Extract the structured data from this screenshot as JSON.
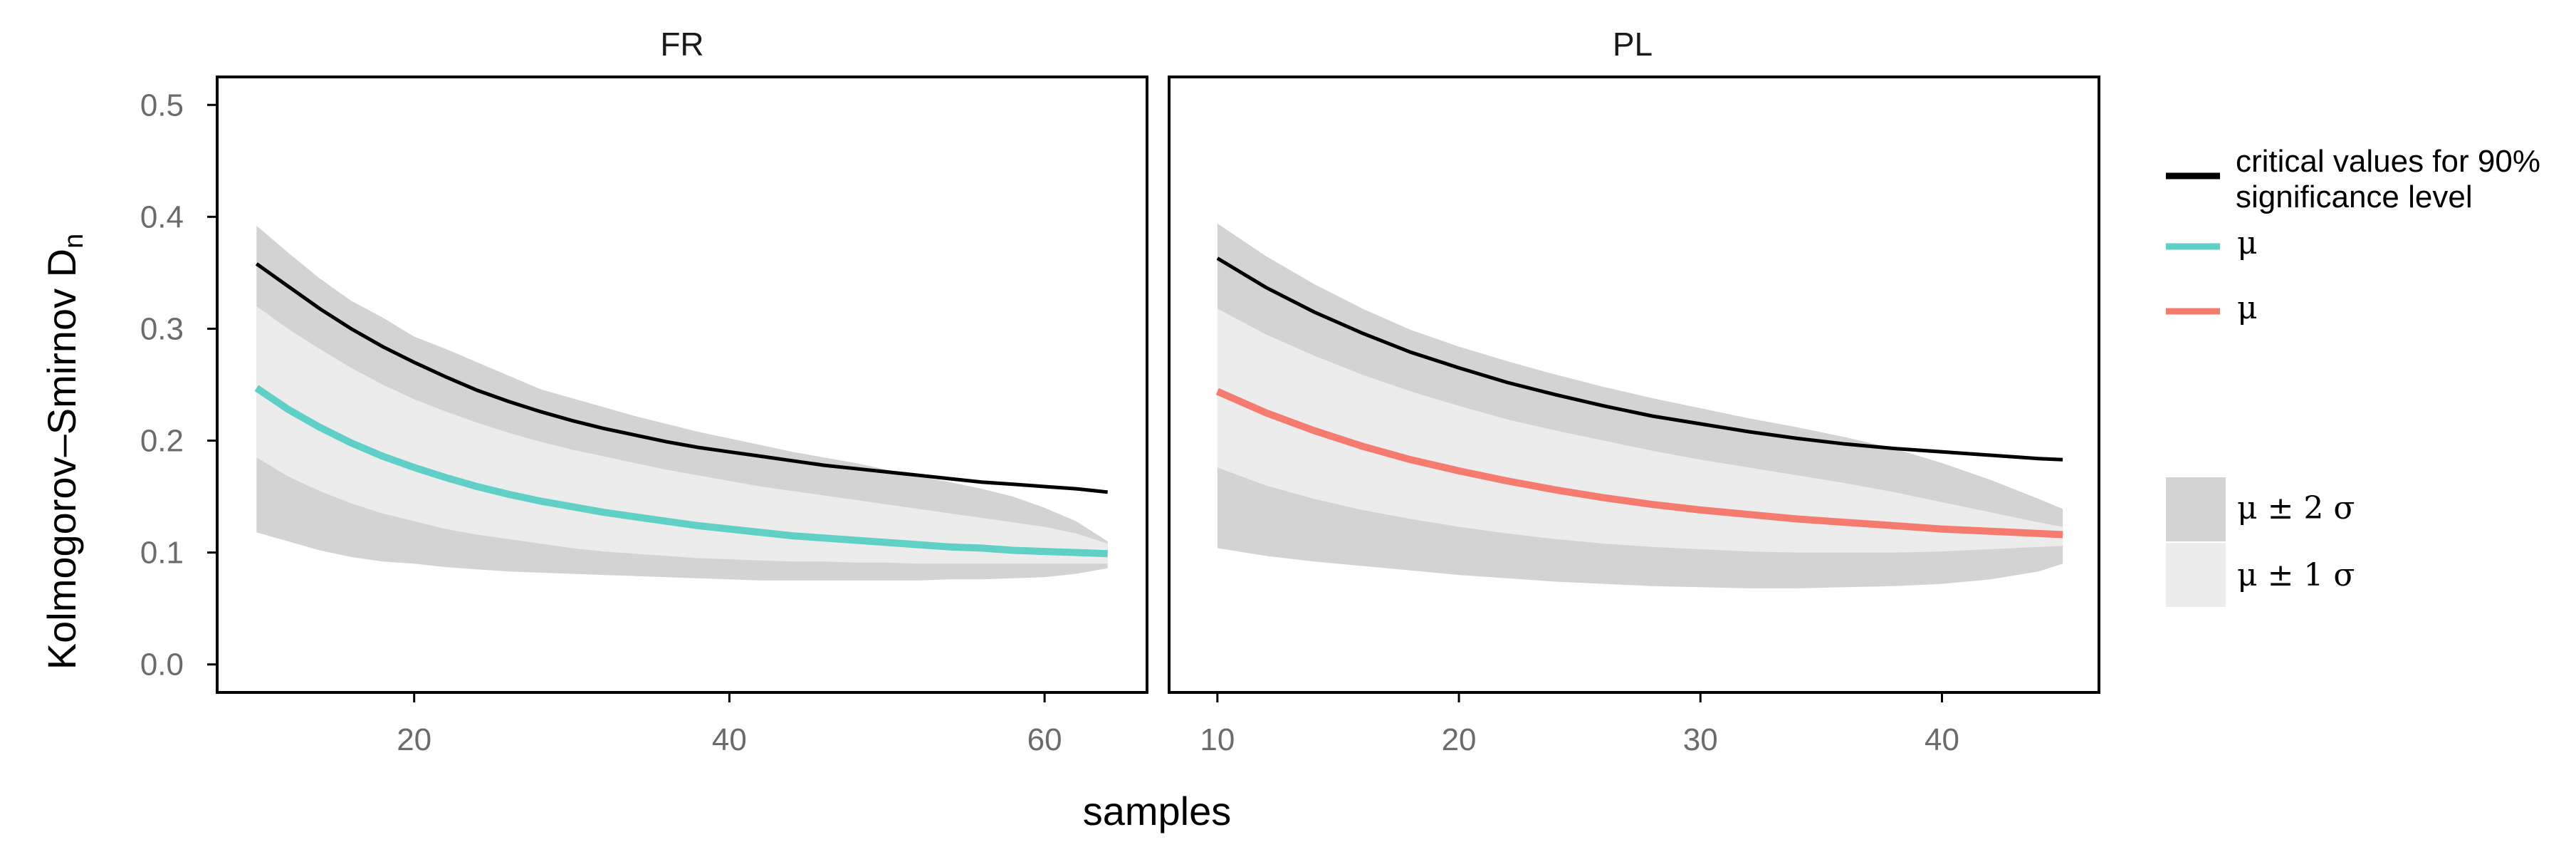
{
  "colors": {
    "critical": "#000000",
    "mu_FR": "#5fcfc7",
    "mu_PL": "#f47b6e",
    "band2": "#d3d3d3",
    "band1": "#ececec",
    "tick_label": "#6b6b6b"
  },
  "chart_data": {
    "type": "line",
    "ylabel": "Kolmogorov–Smirnov D",
    "ylabel_subscript": "n",
    "xlabel": "samples",
    "ylim": [
      -0.025,
      0.525
    ],
    "yticks": [
      0.0,
      0.1,
      0.2,
      0.3,
      0.4,
      0.5
    ],
    "ytick_labels": [
      "0.0",
      "0.1",
      "0.2",
      "0.3",
      "0.4",
      "0.5"
    ],
    "legend": {
      "critical": "critical values for 90%",
      "critical_line2": " significance level",
      "mu_FR": "μ",
      "mu_PL": "μ",
      "band2": "μ ± 2 σ",
      "band1": "μ ± 1 σ"
    },
    "panels": [
      {
        "name": "FR",
        "xlim": [
          7.5,
          66.5
        ],
        "xticks": [
          20,
          40,
          60
        ],
        "xtick_labels": [
          "20",
          "40",
          "60"
        ],
        "x": [
          10,
          12,
          14,
          16,
          18,
          20,
          22,
          24,
          26,
          28,
          30,
          32,
          34,
          36,
          38,
          40,
          42,
          44,
          46,
          48,
          50,
          52,
          54,
          56,
          58,
          60,
          62,
          64
        ],
        "critical": [
          0.358,
          0.338,
          0.318,
          0.3,
          0.284,
          0.27,
          0.257,
          0.245,
          0.235,
          0.226,
          0.218,
          0.211,
          0.205,
          0.199,
          0.194,
          0.19,
          0.186,
          0.182,
          0.178,
          0.175,
          0.172,
          0.169,
          0.166,
          0.163,
          0.161,
          0.159,
          0.157,
          0.154
        ],
        "mean": [
          0.247,
          0.228,
          0.212,
          0.198,
          0.186,
          0.176,
          0.167,
          0.159,
          0.152,
          0.146,
          0.141,
          0.136,
          0.132,
          0.128,
          0.124,
          0.121,
          0.118,
          0.115,
          0.113,
          0.111,
          0.109,
          0.107,
          0.105,
          0.104,
          0.102,
          0.101,
          0.1,
          0.099
        ],
        "upper2": [
          0.392,
          0.368,
          0.345,
          0.325,
          0.31,
          0.293,
          0.282,
          0.27,
          0.258,
          0.246,
          0.238,
          0.23,
          0.222,
          0.215,
          0.208,
          0.202,
          0.196,
          0.19,
          0.185,
          0.18,
          0.174,
          0.168,
          0.163,
          0.157,
          0.15,
          0.14,
          0.128,
          0.11
        ],
        "upper1": [
          0.32,
          0.3,
          0.282,
          0.265,
          0.25,
          0.237,
          0.226,
          0.216,
          0.207,
          0.199,
          0.192,
          0.186,
          0.18,
          0.174,
          0.169,
          0.164,
          0.159,
          0.155,
          0.151,
          0.147,
          0.143,
          0.139,
          0.135,
          0.131,
          0.127,
          0.123,
          0.117,
          0.108
        ],
        "lower1": [
          0.185,
          0.168,
          0.155,
          0.144,
          0.135,
          0.128,
          0.121,
          0.116,
          0.112,
          0.108,
          0.104,
          0.101,
          0.099,
          0.097,
          0.095,
          0.094,
          0.093,
          0.092,
          0.092,
          0.091,
          0.091,
          0.09,
          0.09,
          0.09,
          0.09,
          0.09,
          0.09,
          0.09
        ],
        "lower2": [
          0.118,
          0.11,
          0.102,
          0.096,
          0.092,
          0.09,
          0.087,
          0.085,
          0.083,
          0.082,
          0.081,
          0.08,
          0.079,
          0.078,
          0.077,
          0.076,
          0.075,
          0.075,
          0.075,
          0.075,
          0.075,
          0.075,
          0.076,
          0.076,
          0.077,
          0.078,
          0.081,
          0.086
        ]
      },
      {
        "name": "PL",
        "xlim": [
          8.0,
          46.5
        ],
        "xticks": [
          10,
          20,
          30,
          40
        ],
        "xtick_labels": [
          "10",
          "20",
          "30",
          "40"
        ],
        "x": [
          10,
          12,
          14,
          16,
          18,
          20,
          22,
          24,
          26,
          28,
          30,
          32,
          34,
          36,
          38,
          40,
          42,
          44,
          45
        ],
        "critical": [
          0.363,
          0.337,
          0.315,
          0.296,
          0.279,
          0.265,
          0.252,
          0.241,
          0.231,
          0.222,
          0.215,
          0.208,
          0.202,
          0.197,
          0.193,
          0.19,
          0.187,
          0.184,
          0.183
        ],
        "mean": [
          0.244,
          0.225,
          0.209,
          0.195,
          0.183,
          0.173,
          0.164,
          0.156,
          0.149,
          0.143,
          0.138,
          0.134,
          0.13,
          0.127,
          0.124,
          0.121,
          0.119,
          0.117,
          0.116
        ],
        "upper2": [
          0.394,
          0.365,
          0.34,
          0.318,
          0.299,
          0.284,
          0.271,
          0.259,
          0.248,
          0.238,
          0.229,
          0.22,
          0.212,
          0.203,
          0.193,
          0.18,
          0.165,
          0.148,
          0.139
        ],
        "upper1": [
          0.318,
          0.295,
          0.276,
          0.259,
          0.244,
          0.231,
          0.219,
          0.209,
          0.2,
          0.191,
          0.183,
          0.176,
          0.169,
          0.162,
          0.154,
          0.145,
          0.136,
          0.127,
          0.123
        ],
        "lower1": [
          0.176,
          0.16,
          0.148,
          0.138,
          0.13,
          0.123,
          0.117,
          0.112,
          0.108,
          0.105,
          0.103,
          0.101,
          0.1,
          0.1,
          0.1,
          0.101,
          0.103,
          0.105,
          0.106
        ],
        "lower2": [
          0.104,
          0.097,
          0.092,
          0.088,
          0.084,
          0.08,
          0.077,
          0.074,
          0.072,
          0.07,
          0.069,
          0.068,
          0.068,
          0.069,
          0.07,
          0.072,
          0.076,
          0.083,
          0.09
        ]
      }
    ]
  }
}
